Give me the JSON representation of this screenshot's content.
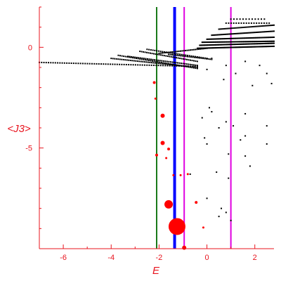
{
  "chart_data": {
    "type": "scatter",
    "title": "",
    "xlabel": "E",
    "ylabel": "<J3>",
    "xlim": [
      -7.0,
      2.8
    ],
    "ylim": [
      -10.0,
      2.0
    ],
    "grid": false,
    "x_ticks": [
      {
        "value": -6,
        "label": "-6"
      },
      {
        "value": -4,
        "label": "-4"
      },
      {
        "value": -2,
        "label": "-2"
      },
      {
        "value": 0,
        "label": "0"
      },
      {
        "value": 2,
        "label": "2"
      }
    ],
    "y_ticks": [
      {
        "value": 0,
        "label": "0"
      },
      {
        "value": -5,
        "label": "-5"
      }
    ],
    "colors": {
      "axis": "#e8141e",
      "points": "#000000",
      "highlight": "#ff0000",
      "line_green": "#1a7a1a",
      "line_blue": "#0000ff",
      "line_magenta": "#e000e0"
    },
    "vertical_lines": [
      {
        "x": -2.1,
        "color_key": "line_green",
        "width": 2
      },
      {
        "x": -1.35,
        "color_key": "line_blue",
        "width": 4
      },
      {
        "x": -0.95,
        "color_key": "line_magenta",
        "width": 2
      },
      {
        "x": 1.0,
        "color_key": "line_magenta",
        "width": 2
      }
    ],
    "bands": [
      {
        "x_start": -7.0,
        "x_end": -0.4,
        "y_start": -0.75,
        "y_end": -0.95,
        "count": 70
      },
      {
        "x_start": -4.0,
        "x_end": -0.4,
        "y_start": -0.55,
        "y_end": -1.0,
        "count": 50
      },
      {
        "x_start": -3.7,
        "x_end": -0.4,
        "y_start": -0.4,
        "y_end": -1.05,
        "count": 45
      },
      {
        "x_start": -3.3,
        "x_end": -0.4,
        "y_start": -0.45,
        "y_end": -0.9,
        "count": 40
      },
      {
        "x_start": -2.8,
        "x_end": -0.4,
        "y_start": -0.2,
        "y_end": -0.7,
        "count": 34
      },
      {
        "x_start": -2.5,
        "x_end": 0.0,
        "y_start": -0.1,
        "y_end": -0.55,
        "count": 32
      },
      {
        "x_start": -2.0,
        "x_end": 0.0,
        "y_start": -0.3,
        "y_end": -0.05,
        "count": 30
      },
      {
        "x_start": -1.6,
        "x_end": 0.2,
        "y_start": -0.35,
        "y_end": -0.6,
        "count": 26
      },
      {
        "x_start": -0.4,
        "x_end": 2.8,
        "y_start": -0.05,
        "y_end": 0.05,
        "count": 90
      },
      {
        "x_start": -0.3,
        "x_end": 2.8,
        "y_start": 0.1,
        "y_end": 0.2,
        "count": 80
      },
      {
        "x_start": -0.2,
        "x_end": 2.8,
        "y_start": 0.25,
        "y_end": 0.3,
        "count": 70
      },
      {
        "x_start": 0.0,
        "x_end": 2.8,
        "y_start": 0.4,
        "y_end": 0.5,
        "count": 60
      },
      {
        "x_start": 0.2,
        "x_end": 2.8,
        "y_start": 0.6,
        "y_end": 0.8,
        "count": 50
      },
      {
        "x_start": 0.5,
        "x_end": 2.8,
        "y_start": 0.9,
        "y_end": 1.1,
        "count": 40
      },
      {
        "x_start": 0.8,
        "x_end": 2.6,
        "y_start": 1.2,
        "y_end": 1.2,
        "count": 18
      },
      {
        "x_start": 1.0,
        "x_end": 2.4,
        "y_start": 1.4,
        "y_end": 1.4,
        "count": 12
      }
    ],
    "scattered_points": [
      [
        0.2,
        -0.55
      ],
      [
        0.8,
        -0.9
      ],
      [
        1.6,
        -0.7
      ],
      [
        2.5,
        -1.3
      ],
      [
        2.7,
        -1.8
      ],
      [
        1.9,
        -1.9
      ],
      [
        0.7,
        -1.6
      ],
      [
        1.2,
        -1.3
      ],
      [
        2.2,
        -0.9
      ],
      [
        0.0,
        -1.1
      ],
      [
        0.1,
        -3.0
      ],
      [
        0.2,
        -3.2
      ],
      [
        1.6,
        -3.3
      ],
      [
        -0.2,
        -3.5
      ],
      [
        0.8,
        -3.7
      ],
      [
        1.1,
        -3.9
      ],
      [
        2.5,
        -3.9
      ],
      [
        0.5,
        -4.0
      ],
      [
        1.6,
        -4.4
      ],
      [
        -0.1,
        -4.5
      ],
      [
        1.4,
        -4.6
      ],
      [
        0.0,
        -4.8
      ],
      [
        2.5,
        -4.8
      ],
      [
        0.9,
        -5.3
      ],
      [
        1.6,
        -5.4
      ],
      [
        1.8,
        -5.9
      ],
      [
        0.4,
        -6.2
      ],
      [
        0.9,
        -6.5
      ],
      [
        0.0,
        -7.5
      ],
      [
        0.6,
        -8.0
      ],
      [
        0.8,
        -8.2
      ],
      [
        0.5,
        -8.4
      ],
      [
        1.0,
        -8.6
      ],
      [
        -0.7,
        -6.3
      ]
    ],
    "highlight_points": [
      {
        "x": -2.2,
        "y": -1.75,
        "r": 2
      },
      {
        "x": -2.15,
        "y": -2.55,
        "r": 1.5
      },
      {
        "x": -1.85,
        "y": -3.4,
        "r": 3
      },
      {
        "x": -1.85,
        "y": -4.75,
        "r": 3
      },
      {
        "x": -1.6,
        "y": -5.05,
        "r": 2
      },
      {
        "x": -2.1,
        "y": -5.35,
        "r": 2
      },
      {
        "x": -1.7,
        "y": -5.5,
        "r": 1.5
      },
      {
        "x": -1.4,
        "y": -6.35,
        "r": 1.5
      },
      {
        "x": -1.1,
        "y": -6.35,
        "r": 1.5
      },
      {
        "x": -0.8,
        "y": -6.3,
        "r": 1.5
      },
      {
        "x": -0.45,
        "y": -7.7,
        "r": 2
      },
      {
        "x": -1.6,
        "y": -7.8,
        "r": 6
      },
      {
        "x": -1.25,
        "y": -8.9,
        "r": 12
      },
      {
        "x": -0.15,
        "y": -8.95,
        "r": 1.5
      },
      {
        "x": -0.95,
        "y": -9.95,
        "r": 3
      }
    ]
  }
}
